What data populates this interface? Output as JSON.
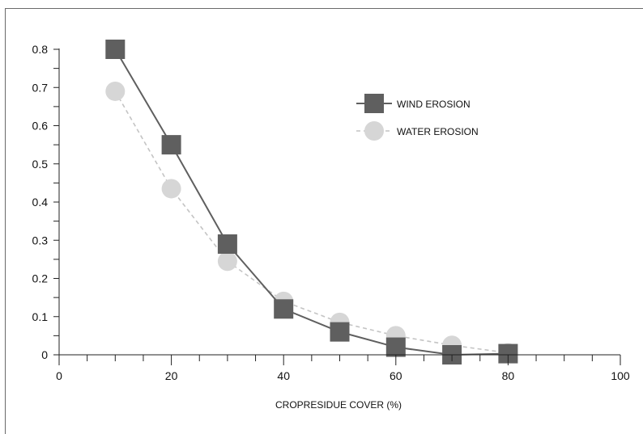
{
  "chart_data": {
    "type": "line",
    "title": "",
    "xlabel": "CROPRESIDUE COVER (%)",
    "ylabel": "",
    "xlim": [
      0,
      100
    ],
    "ylim": [
      0,
      0.8
    ],
    "x_ticks": [
      0,
      20,
      40,
      60,
      80,
      100
    ],
    "y_ticks": [
      0,
      0.1,
      0.2,
      0.3,
      0.4,
      0.5,
      0.6,
      0.7,
      0.8
    ],
    "grid": false,
    "legend_position": "top-right",
    "series": [
      {
        "name": "WIND EROSION",
        "color": "#5f5f5f",
        "marker": "square",
        "line_style": "solid",
        "x": [
          10,
          20,
          30,
          40,
          50,
          60,
          70,
          80
        ],
        "y": [
          0.8,
          0.55,
          0.29,
          0.12,
          0.06,
          0.02,
          0.0,
          0.003
        ]
      },
      {
        "name": "WATER EROSION",
        "color": "#d6d6d6",
        "marker": "circle",
        "line_style": "dashed",
        "x": [
          10,
          20,
          30,
          40,
          50,
          60,
          70,
          80
        ],
        "y": [
          0.69,
          0.435,
          0.245,
          0.14,
          0.085,
          0.05,
          0.025,
          0.005
        ]
      }
    ]
  }
}
